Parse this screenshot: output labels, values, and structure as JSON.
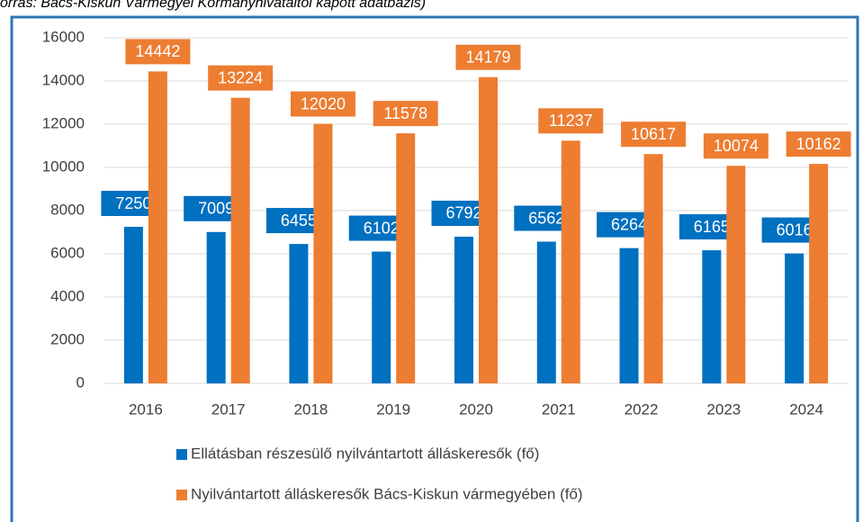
{
  "chart_data": {
    "type": "bar",
    "subtitle": "orrás: Bács-Kiskun Vármegyei Kormányhivataltól kapott adatbázis)",
    "categories": [
      "2016",
      "2017",
      "2018",
      "2019",
      "2020",
      "2021",
      "2022",
      "2023",
      "2024"
    ],
    "series": [
      {
        "name": "Ellátásban részesülő nyilvántartott álláskeresők (fő)",
        "color": "#0070c0",
        "values": [
          7250,
          7009,
          6455,
          6102,
          6792,
          6562,
          6264,
          6165,
          6016
        ]
      },
      {
        "name": "Nyilvántartott álláskeresők Bács-Kiskun vármegyében (fő)",
        "color": "#ed7d31",
        "values": [
          14442,
          13224,
          12020,
          11578,
          14179,
          11237,
          10617,
          10074,
          10162
        ]
      }
    ],
    "ylim": [
      0,
      16000
    ],
    "yticks": [
      0,
      2000,
      4000,
      6000,
      8000,
      10000,
      12000,
      14000,
      16000
    ],
    "grid": true,
    "legend": "bottom"
  }
}
